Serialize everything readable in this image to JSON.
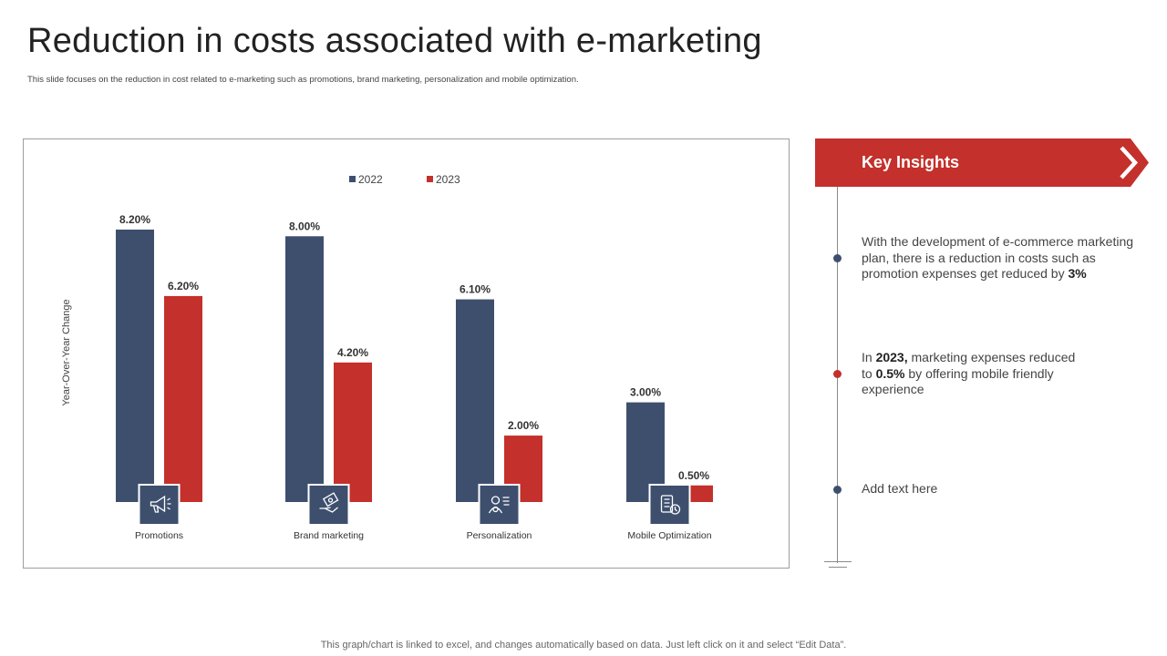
{
  "header": {
    "title": "Reduction in costs associated with e-marketing",
    "subtitle": "This slide focuses on the reduction in  cost related to e-marketing  such as promotions, brand marketing,  personalization and mobile  optimization."
  },
  "footer": {
    "text": "This graph/chart is linked to excel,  and changes automatically based on data. Just left click on it and select “Edit Data”."
  },
  "colors": {
    "navy": "#3e4f6e",
    "red": "#c4302b"
  },
  "chart_data": {
    "type": "bar",
    "categories": [
      "Promotions",
      "Brand marketing",
      "Personalization",
      "Mobile Optimization"
    ],
    "series": [
      {
        "name": "2022",
        "values": [
          8.2,
          8.0,
          6.1,
          3.0
        ],
        "labels": [
          "8.20%",
          "8.00%",
          "6.10%",
          "3.00%"
        ],
        "color": "#3e4f6e"
      },
      {
        "name": "2023",
        "values": [
          6.2,
          4.2,
          2.0,
          0.5
        ],
        "labels": [
          "6.20%",
          "4.20%",
          "2.00%",
          "0.50%"
        ],
        "color": "#c4302b"
      }
    ],
    "ylabel": "Year-Over-Year Change",
    "xlabel": "",
    "ylim": [
      0,
      8.2
    ],
    "grid": false,
    "legend": "top-center",
    "category_icons": [
      "megaphone-icon",
      "money-hand-icon",
      "user-profile-icon",
      "mobile-devices-icon"
    ]
  },
  "insights": {
    "title": "Key Insights",
    "items": [
      {
        "parts": [
          {
            "text": "With the development of e-commerce marketing plan, there is a reduction in costs such as promotion expenses get reduced by ",
            "bold": false
          },
          {
            "text": "3%",
            "bold": true
          }
        ],
        "dot_color": "#3e4f6e"
      },
      {
        "parts": [
          {
            "text": "In ",
            "bold": false
          },
          {
            "text": "2023,",
            "bold": true
          },
          {
            "text": " marketing expenses reduced to ",
            "bold": false
          },
          {
            "text": "0.5%",
            "bold": true
          },
          {
            "text": " by offering mobile friendly experience",
            "bold": false
          }
        ],
        "dot_color": "#c4302b"
      },
      {
        "parts": [
          {
            "text": "Add text here",
            "bold": false
          }
        ],
        "dot_color": "#3e4f6e"
      }
    ]
  }
}
